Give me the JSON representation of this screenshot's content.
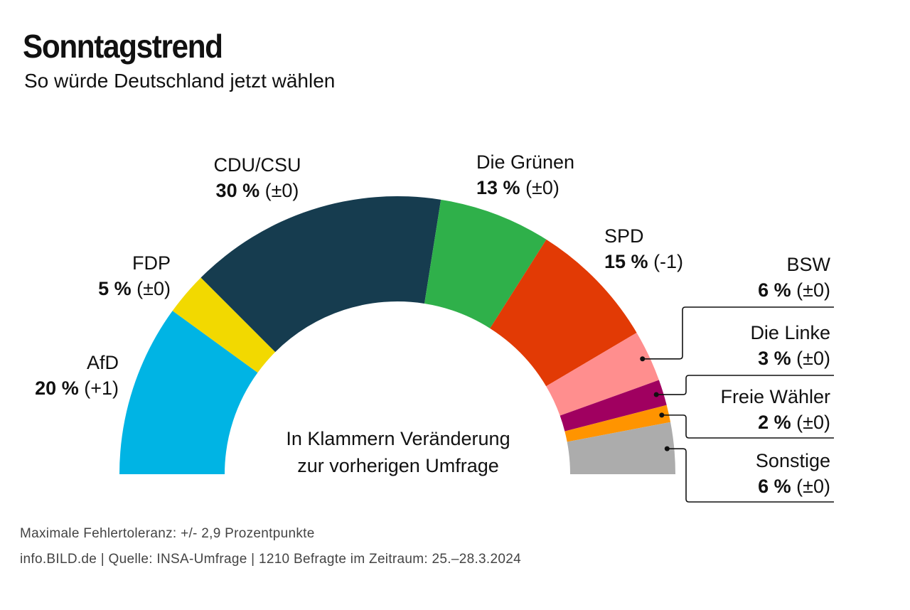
{
  "header": {
    "title": "Sonntagstrend",
    "subtitle": "So würde Deutschland jetzt wählen"
  },
  "note": {
    "line1": "In Klammern Veränderung",
    "line2": "zur vorherigen Umfrage"
  },
  "footer": {
    "line1": "Maximale Fehlertoleranz: +/- 2,9 Prozentpunkte",
    "line2": "info.BILD.de | Quelle: INSA-Umfrage | 1210 Befragte im Zeitraum: 25.–28.3.2024"
  },
  "chart_data": {
    "type": "pie",
    "subtype": "semicircle-donut",
    "title": "Sonntagstrend",
    "unit": "%",
    "categories": [
      "AfD",
      "FDP",
      "CDU/CSU",
      "Die Grünen",
      "SPD",
      "BSW",
      "Die Linke",
      "Freie Wähler",
      "Sonstige"
    ],
    "values": [
      20,
      5,
      30,
      13,
      15,
      6,
      3,
      2,
      6
    ],
    "changes": [
      "(+1)",
      "(±0)",
      "(±0)",
      "(±0)",
      "(-1)",
      "(±0)",
      "(±0)",
      "(±0)",
      "(±0)"
    ],
    "value_labels": [
      "20 %",
      "5 %",
      "30 %",
      "13 %",
      "15 %",
      "6 %",
      "3 %",
      "2 %",
      "6 %"
    ],
    "colors": [
      "#00b4e4",
      "#f2d900",
      "#163c4f",
      "#2fb04a",
      "#e23a05",
      "#ff8e8e",
      "#a00060",
      "#ff9400",
      "#acacac"
    ],
    "order": "left-to-right"
  }
}
